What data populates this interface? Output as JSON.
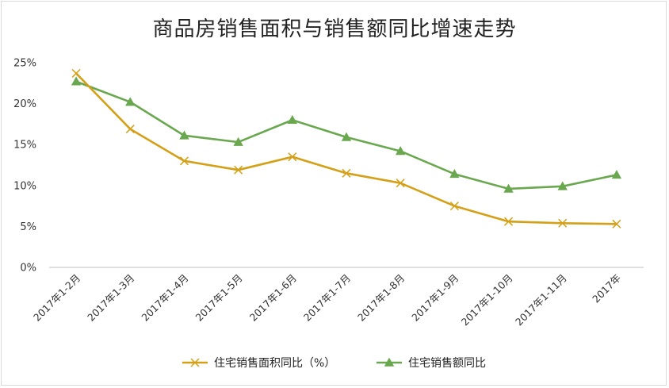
{
  "chart_data": {
    "type": "line",
    "title": "商品房销售面积与销售额同比增速走势",
    "categories": [
      "2017年1-2月",
      "2017年1-3月",
      "2017年1-4月",
      "2017年1-5月",
      "2017年1-6月",
      "2017年1-7月",
      "2017年1-8月",
      "2017年1-9月",
      "2017年1-10月",
      "2017年1-11月",
      "2017年"
    ],
    "y_ticks": [
      "0%",
      "5%",
      "10%",
      "15%",
      "20%",
      "25%"
    ],
    "ylim": [
      0,
      25
    ],
    "y_unit": "%",
    "grid": false,
    "legend_position": "bottom",
    "series": [
      {
        "name": "住宅销售面积同比（%）",
        "color": "#d4a017",
        "marker": "x",
        "values": [
          23.7,
          16.9,
          13.0,
          11.9,
          13.5,
          11.5,
          10.3,
          7.5,
          5.6,
          5.4,
          5.3
        ]
      },
      {
        "name": "住宅销售额同比",
        "color": "#6aa84f",
        "marker": "triangle",
        "values": [
          22.7,
          20.2,
          16.1,
          15.3,
          18.0,
          15.9,
          14.2,
          11.4,
          9.6,
          9.9,
          11.3
        ]
      }
    ]
  }
}
